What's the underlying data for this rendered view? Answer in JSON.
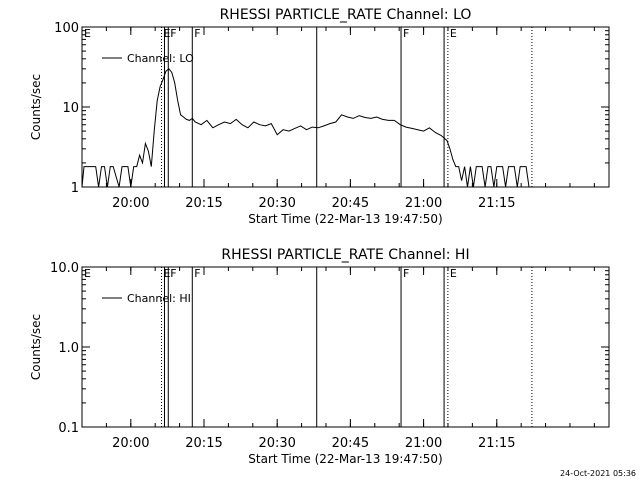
{
  "footer_timestamp": "24-Oct-2021 05:36",
  "chart_data": [
    {
      "type": "line",
      "title": "RHESSI PARTICLE_RATE Channel: LO",
      "xlabel": "Start Time (22-Mar-13 19:47:50)",
      "ylabel": "Counts/sec",
      "y_scale": "log",
      "ylim": [
        1,
        100
      ],
      "yticks": [
        {
          "value": 1,
          "label": "1"
        },
        {
          "value": 10,
          "label": "10"
        },
        {
          "value": 100,
          "label": "100"
        }
      ],
      "xlim_minutes": [
        19.8333,
        21.6333
      ],
      "xticks": [
        {
          "value": 20.0,
          "label": "20:00"
        },
        {
          "value": 20.25,
          "label": "20:15"
        },
        {
          "value": 20.5,
          "label": "20:30"
        },
        {
          "value": 20.75,
          "label": "20:45"
        },
        {
          "value": 21.0,
          "label": "21:00"
        },
        {
          "value": 21.25,
          "label": "21:15"
        }
      ],
      "grid": false,
      "legend": {
        "position": "top-left",
        "label": "Channel: LO"
      },
      "markers": [
        {
          "x": 20.105,
          "style": "dotted",
          "label": "E"
        },
        {
          "x": 20.115,
          "style": "solid",
          "label": ""
        },
        {
          "x": 20.128,
          "style": "solid",
          "label": "F"
        },
        {
          "x": 20.21,
          "style": "solid",
          "label": "F"
        },
        {
          "x": 20.635,
          "style": "solid",
          "label": ""
        },
        {
          "x": 20.923,
          "style": "solid",
          "label": "F"
        },
        {
          "x": 21.07,
          "style": "solid",
          "label": ""
        },
        {
          "x": 21.083,
          "style": "dotted",
          "label": "E"
        },
        {
          "x": 21.37,
          "style": "dotted",
          "label": ""
        }
      ],
      "series": [
        {
          "x": [
            19.8333,
            19.84,
            19.86,
            19.88,
            19.89,
            19.9,
            19.91,
            19.92,
            19.93,
            19.94,
            19.96,
            19.97,
            19.99,
            20.0,
            20.01,
            20.02,
            20.03,
            20.04,
            20.05,
            20.06,
            20.07,
            20.08,
            20.09,
            20.1,
            20.11,
            20.12,
            20.13,
            20.14,
            20.15,
            20.16,
            20.17,
            20.18,
            20.19,
            20.2,
            20.21,
            20.22,
            20.24,
            20.26,
            20.28,
            20.3,
            20.32,
            20.34,
            20.36,
            20.38,
            20.4,
            20.42,
            20.44,
            20.46,
            20.48,
            20.5,
            20.52,
            20.54,
            20.56,
            20.58,
            20.6,
            20.62,
            20.64,
            20.66,
            20.68,
            20.7,
            20.72,
            20.74,
            20.76,
            20.78,
            20.8,
            20.82,
            20.84,
            20.86,
            20.88,
            20.9,
            20.92,
            20.94,
            20.96,
            20.98,
            21.0,
            21.02,
            21.04,
            21.06,
            21.08,
            21.09,
            21.1,
            21.11,
            21.12,
            21.13,
            21.14,
            21.15,
            21.16,
            21.17,
            21.18,
            21.19,
            21.2,
            21.21,
            21.22,
            21.23,
            21.24,
            21.25,
            21.26,
            21.27,
            21.28,
            21.29,
            21.3,
            21.31,
            21.32,
            21.33,
            21.34,
            21.35,
            21.36
          ],
          "y": [
            1,
            1.8,
            1.8,
            1.8,
            1,
            1.8,
            1.8,
            1,
            1.8,
            1.8,
            1,
            1.8,
            1.8,
            1,
            1.8,
            1.8,
            2.5,
            2,
            3.5,
            2.8,
            1.8,
            5,
            12,
            18,
            22,
            28,
            30,
            27,
            20,
            12,
            8,
            7.5,
            7,
            6.8,
            7.2,
            6.5,
            6,
            6.8,
            5.5,
            6,
            6.5,
            6.2,
            7,
            6,
            5.5,
            6.5,
            6,
            5.8,
            6.2,
            4.5,
            5.2,
            5,
            5.4,
            5.8,
            5.2,
            5.6,
            5.5,
            5.8,
            6.2,
            6.5,
            8,
            7.5,
            7.2,
            7.8,
            7.4,
            7.2,
            7.5,
            7,
            6.8,
            6.8,
            6,
            5.6,
            5.4,
            5.2,
            5,
            5.5,
            4.8,
            4.4,
            3.8,
            3,
            2.2,
            1.8,
            1.8,
            1.2,
            1.8,
            1,
            1.8,
            1,
            1.8,
            1.8,
            1.8,
            1,
            1.8,
            1.8,
            1,
            1.8,
            1.8,
            1.8,
            1,
            1.8,
            1.8,
            1.8,
            1,
            1.8,
            1.8,
            1.8,
            1
          ]
        }
      ]
    },
    {
      "type": "line",
      "title": "RHESSI PARTICLE_RATE Channel: HI",
      "xlabel": "Start Time (22-Mar-13 19:47:50)",
      "ylabel": "Counts/sec",
      "y_scale": "log",
      "ylim": [
        0.1,
        10
      ],
      "yticks": [
        {
          "value": 0.1,
          "label": "0.1"
        },
        {
          "value": 1,
          "label": "1.0"
        },
        {
          "value": 10,
          "label": "10.0"
        }
      ],
      "xlim_minutes": [
        19.8333,
        21.6333
      ],
      "xticks": [
        {
          "value": 20.0,
          "label": "20:00"
        },
        {
          "value": 20.25,
          "label": "20:15"
        },
        {
          "value": 20.5,
          "label": "20:30"
        },
        {
          "value": 20.75,
          "label": "20:45"
        },
        {
          "value": 21.0,
          "label": "21:00"
        },
        {
          "value": 21.25,
          "label": "21:15"
        }
      ],
      "grid": false,
      "legend": {
        "position": "top-left",
        "label": "Channel: HI"
      },
      "markers": [
        {
          "x": 20.105,
          "style": "dotted",
          "label": "E"
        },
        {
          "x": 20.115,
          "style": "solid",
          "label": ""
        },
        {
          "x": 20.128,
          "style": "solid",
          "label": "F"
        },
        {
          "x": 20.21,
          "style": "solid",
          "label": "F"
        },
        {
          "x": 20.635,
          "style": "solid",
          "label": ""
        },
        {
          "x": 20.923,
          "style": "solid",
          "label": "F"
        },
        {
          "x": 21.07,
          "style": "solid",
          "label": ""
        },
        {
          "x": 21.083,
          "style": "dotted",
          "label": "E"
        },
        {
          "x": 21.37,
          "style": "dotted",
          "label": ""
        }
      ],
      "series": []
    }
  ]
}
